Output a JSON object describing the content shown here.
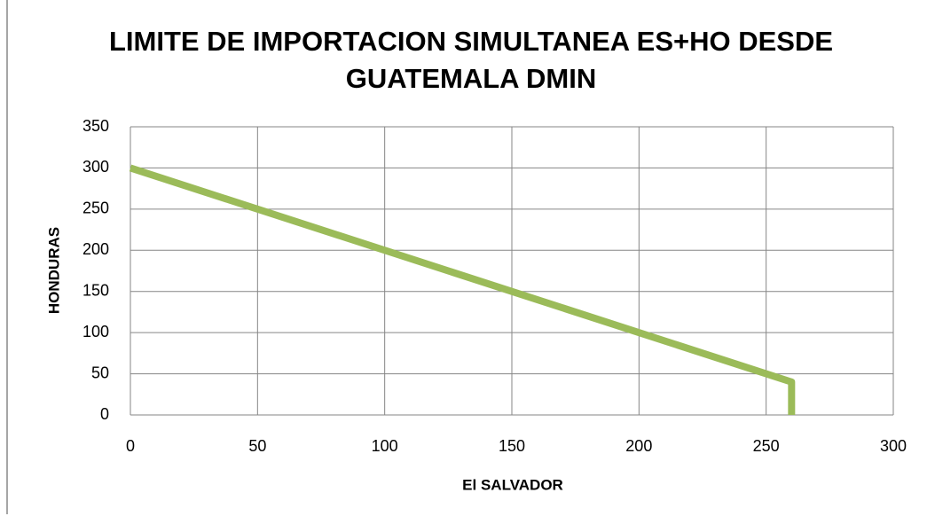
{
  "chart_data": {
    "type": "line",
    "title": "LIMITE DE IMPORTACION SIMULTANEA ES+HO DESDE GUATEMALA DMIN",
    "xlabel": "El SALVADOR",
    "ylabel": "HONDURAS",
    "x": [
      0,
      260,
      260
    ],
    "values": [
      300,
      40,
      0
    ],
    "color": "#9bbb59",
    "xlim": [
      0,
      300
    ],
    "xticks": [
      0,
      50,
      100,
      150,
      200,
      250,
      300
    ],
    "ylim": [
      0,
      350
    ],
    "yticks": [
      0,
      50,
      100,
      150,
      200,
      250,
      300,
      350
    ],
    "grid": true
  }
}
